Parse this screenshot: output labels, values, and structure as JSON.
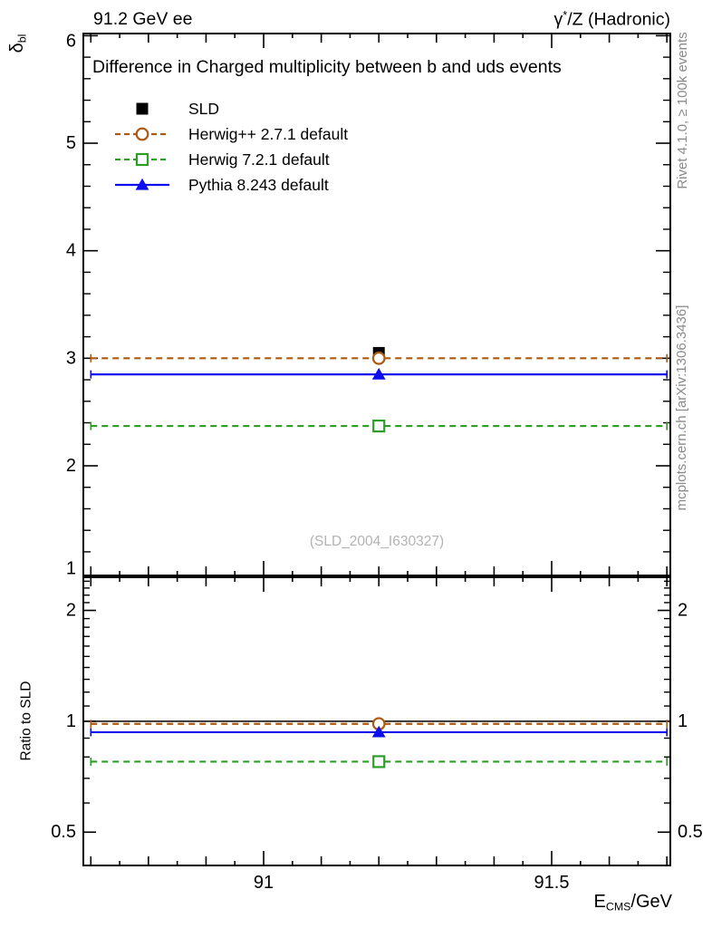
{
  "header": {
    "left": "91.2 GeV ee",
    "right_base": "γ",
    "right_sup": "*",
    "right_rest": "/Z (Hadronic)"
  },
  "side_notes": {
    "rivet": "Rivet 4.1.0, ≥ 100k events",
    "mcplots": "mcplots.cern.ch [arXiv:1306.3436]"
  },
  "watermark": "(SLD_2004_I630327)",
  "chart_data": {
    "type": "line",
    "title": "Difference in Charged multiplicity between b and uds events",
    "xlabel": {
      "base": "E",
      "sub": "CMS",
      "rest": "/GeV"
    },
    "ylabel": {
      "base": "δ",
      "sub": "bl"
    },
    "ratio_ylabel": "Ratio to SLD",
    "x": {
      "lim": [
        90.687,
        91.706
      ],
      "point": 91.2,
      "bin": [
        90.7,
        91.7
      ],
      "major_ticks": [
        91,
        91.5
      ],
      "tick_labels": [
        "91",
        "91.5"
      ],
      "small_step": 0.05,
      "medium_step": 0.1
    },
    "main_axis": {
      "lim": [
        1,
        6
      ],
      "tick_labels": [
        6,
        5,
        4,
        3,
        2,
        1
      ],
      "major_ticks": [
        2,
        3,
        4,
        5,
        6
      ],
      "minor_step": 0.2,
      "grid": false
    },
    "ratio_axis": {
      "scale": "log",
      "lim": [
        0.406,
        2.46
      ],
      "ticks": [
        2,
        1,
        0.5
      ],
      "tick_labels": [
        "2",
        "1",
        "0.5"
      ],
      "reference_value": 1.0
    },
    "series": [
      {
        "key": "sld",
        "label": "SLD",
        "color": "#000000",
        "marker": "square-filled",
        "line": "none",
        "value": 3.05,
        "ratio": null
      },
      {
        "key": "herwigpp",
        "label": "Herwig++ 2.7.1 default",
        "color": "#ad5a11",
        "marker": "circle-open",
        "line": "dashed",
        "value": 3.0,
        "ratio": 0.984
      },
      {
        "key": "herwig7",
        "label": "Herwig 7.2.1 default",
        "color": "#2f9c28",
        "marker": "square-open",
        "line": "dashed",
        "value": 2.37,
        "ratio": 0.777
      },
      {
        "key": "pythia8",
        "label": "Pythia 8.243 default",
        "color": "#0c0cee",
        "marker": "triangle-filled",
        "line": "solid",
        "value": 2.85,
        "ratio": 0.934
      }
    ]
  }
}
